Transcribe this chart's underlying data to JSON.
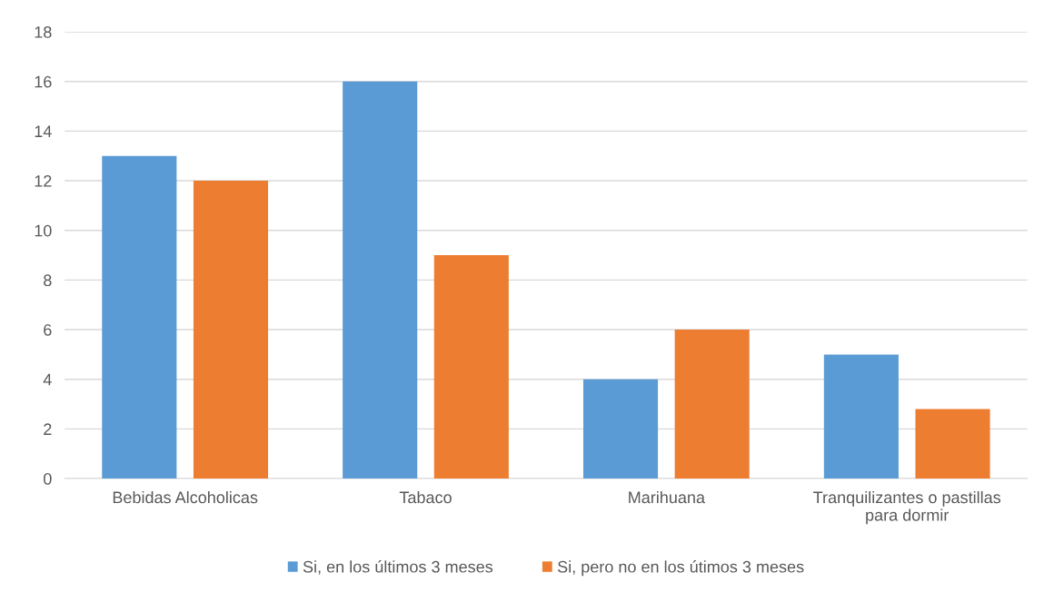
{
  "chart_data": {
    "type": "bar",
    "categories": [
      "Bebidas Alcoholicas",
      "Tabaco",
      "Marihuana",
      "Tranquilizantes o pastillas\npara dormir"
    ],
    "series": [
      {
        "name": "Si, en los últimos 3 meses",
        "color": "#5b9bd5",
        "values": [
          13,
          16,
          4,
          5
        ]
      },
      {
        "name": "Si, pero no en los útimos 3 meses",
        "color": "#ed7d31",
        "values": [
          12,
          9,
          6,
          2.8
        ]
      }
    ],
    "ylim": [
      0,
      18
    ],
    "yticks": [
      0,
      2,
      4,
      6,
      8,
      10,
      12,
      14,
      16,
      18
    ],
    "grid": "y",
    "legend": "bottom"
  }
}
